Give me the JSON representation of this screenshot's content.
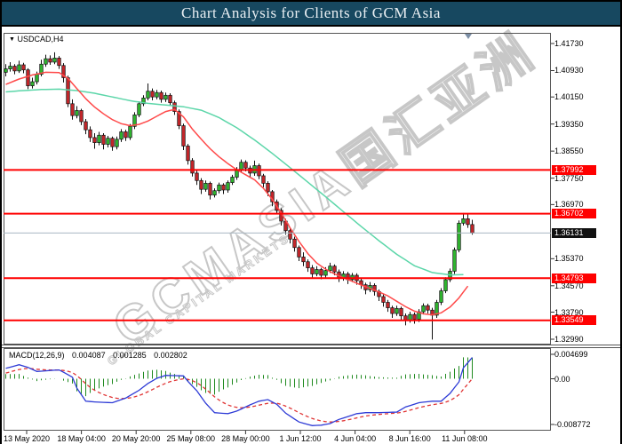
{
  "title_bar": {
    "text": "Chart Analysis for Clients of GCM Asia"
  },
  "symbol_label": {
    "arrow": "▼",
    "text": "USDCAD,H4"
  },
  "watermark": {
    "line1": "GCMASIA国汇亚洲",
    "line2": "GLOBAL CAPITAL MARKETS"
  },
  "colors": {
    "title_bg": "#174860",
    "title_fg": "#e9eff3",
    "bull": "#2FB52F",
    "bear": "#C3262A",
    "candle_outline": "#111111",
    "ma_fast": "#FF4A4A",
    "ma_slow": "#5CD6A9",
    "hline_red": "#FF0000",
    "current_line": "#A7B6C2",
    "macd_line": "#2E3BD6",
    "signal_line": "#E03434",
    "histogram": "#1F8A1F",
    "badge_red": "#FF0000",
    "badge_black": "#111111",
    "frame": "#555555",
    "marker": "#7C8FA6"
  },
  "chart_data": [
    {
      "type": "candlestick",
      "symbol": "USDCAD",
      "timeframe": "H4",
      "ylim": [
        1.3299,
        1.4173
      ],
      "y_ticks": [
        "1.41730",
        "1.40930",
        "1.40150",
        "1.39350",
        "1.38550",
        "1.37750",
        "1.36970",
        "1.35370",
        "1.34570",
        "1.33790",
        "1.32990"
      ],
      "x_labels": [
        "13 May 2020",
        "18 May 04:00",
        "20 May 20:00",
        "25 May 08:00",
        "28 May 00:00",
        "1 Jun 12:00",
        "4 Jun 04:00",
        "8 Jun 16:00",
        "11 Jun 08:00"
      ],
      "hlines": [
        {
          "price": "1.37992",
          "role": "resistance"
        },
        {
          "price": "1.36702",
          "role": "resistance"
        },
        {
          "price": "1.34793",
          "role": "support"
        },
        {
          "price": "1.33549",
          "role": "support"
        }
      ],
      "current_price": {
        "price": "1.36131"
      },
      "ma_fast_red": {
        "points": [
          [
            0,
            1.4052
          ],
          [
            3,
            1.4068
          ],
          [
            6,
            1.408
          ],
          [
            9,
            1.4088
          ],
          [
            12,
            1.4087
          ],
          [
            14,
            1.407
          ],
          [
            16,
            1.404
          ],
          [
            18,
            1.401
          ],
          [
            20,
            1.3985
          ],
          [
            22,
            1.3965
          ],
          [
            24,
            1.3948
          ],
          [
            26,
            1.3936
          ],
          [
            28,
            1.393
          ],
          [
            30,
            1.3934
          ],
          [
            32,
            1.3944
          ],
          [
            34,
            1.3958
          ],
          [
            36,
            1.3972
          ],
          [
            38,
            1.3978
          ],
          [
            40,
            1.3956
          ],
          [
            42,
            1.392
          ],
          [
            44,
            1.389
          ],
          [
            46,
            1.3862
          ],
          [
            48,
            1.3838
          ],
          [
            50,
            1.3818
          ],
          [
            52,
            1.38
          ],
          [
            54,
            1.3785
          ],
          [
            56,
            1.377
          ],
          [
            58,
            1.3745
          ],
          [
            60,
            1.3712
          ],
          [
            62,
            1.3672
          ],
          [
            64,
            1.3628
          ],
          [
            66,
            1.3588
          ],
          [
            68,
            1.3552
          ],
          [
            70,
            1.3524
          ],
          [
            72,
            1.3506
          ],
          [
            74,
            1.3492
          ],
          [
            76,
            1.3481
          ],
          [
            78,
            1.347
          ],
          [
            80,
            1.3459
          ],
          [
            82,
            1.3449
          ],
          [
            84,
            1.3439
          ],
          [
            86,
            1.3427
          ],
          [
            88,
            1.3411
          ],
          [
            90,
            1.3395
          ],
          [
            92,
            1.3382
          ],
          [
            94,
            1.3374
          ],
          [
            96,
            1.3371
          ],
          [
            98,
            1.3377
          ],
          [
            100,
            1.3394
          ],
          [
            102,
            1.3421
          ],
          [
            104,
            1.3456
          ]
        ]
      },
      "ma_slow_green": {
        "points": [
          [
            0,
            1.403
          ],
          [
            4,
            1.4034
          ],
          [
            8,
            1.4037
          ],
          [
            12,
            1.4038
          ],
          [
            16,
            1.4034
          ],
          [
            20,
            1.4026
          ],
          [
            24,
            1.4015
          ],
          [
            28,
            1.4004
          ],
          [
            32,
            1.3996
          ],
          [
            36,
            1.3991
          ],
          [
            40,
            1.3986
          ],
          [
            44,
            1.3976
          ],
          [
            48,
            1.3954
          ],
          [
            52,
            1.3924
          ],
          [
            56,
            1.3888
          ],
          [
            60,
            1.3848
          ],
          [
            64,
            1.3806
          ],
          [
            68,
            1.3763
          ],
          [
            72,
            1.372
          ],
          [
            76,
            1.3676
          ],
          [
            80,
            1.3632
          ],
          [
            84,
            1.359
          ],
          [
            88,
            1.355
          ],
          [
            92,
            1.3516
          ],
          [
            96,
            1.3496
          ],
          [
            100,
            1.3489
          ],
          [
            103,
            1.349
          ]
        ]
      },
      "candles": [
        [
          1.4088,
          1.4112,
          1.4076,
          1.4098
        ],
        [
          1.4098,
          1.4118,
          1.409,
          1.4106
        ],
        [
          1.4106,
          1.4112,
          1.4082,
          1.4092
        ],
        [
          1.4092,
          1.4122,
          1.4086,
          1.411
        ],
        [
          1.411,
          1.4116,
          1.4085,
          1.4095
        ],
        [
          1.4095,
          1.41,
          1.4038,
          1.4048
        ],
        [
          1.4048,
          1.4072,
          1.404,
          1.406
        ],
        [
          1.406,
          1.409,
          1.4052,
          1.4082
        ],
        [
          1.4082,
          1.4125,
          1.4076,
          1.4112
        ],
        [
          1.4112,
          1.414,
          1.4104,
          1.4128
        ],
        [
          1.4128,
          1.4138,
          1.411,
          1.4118
        ],
        [
          1.4118,
          1.4147,
          1.4112,
          1.413
        ],
        [
          1.413,
          1.4136,
          1.4098,
          1.4108
        ],
        [
          1.4108,
          1.4115,
          1.4058,
          1.4072
        ],
        [
          1.4072,
          1.4078,
          1.3985,
          1.3995
        ],
        [
          1.3995,
          1.4008,
          1.3948,
          1.396
        ],
        [
          1.396,
          1.3988,
          1.3952,
          1.3975
        ],
        [
          1.3975,
          1.398,
          1.3932,
          1.3942
        ],
        [
          1.3942,
          1.395,
          1.3905,
          1.3918
        ],
        [
          1.3918,
          1.3928,
          1.3882,
          1.3895
        ],
        [
          1.3895,
          1.3908,
          1.3862,
          1.388
        ],
        [
          1.388,
          1.3912,
          1.3872,
          1.3902
        ],
        [
          1.3902,
          1.3908,
          1.386,
          1.3875
        ],
        [
          1.3875,
          1.39,
          1.3866,
          1.3893
        ],
        [
          1.3893,
          1.3898,
          1.3856,
          1.3868
        ],
        [
          1.3868,
          1.3898,
          1.386,
          1.389
        ],
        [
          1.389,
          1.392,
          1.3882,
          1.3912
        ],
        [
          1.3912,
          1.3918,
          1.3885,
          1.3895
        ],
        [
          1.3895,
          1.3935,
          1.3888,
          1.3928
        ],
        [
          1.3928,
          1.397,
          1.392,
          1.3962
        ],
        [
          1.3962,
          1.4002,
          1.3955,
          1.3995
        ],
        [
          1.3995,
          1.402,
          1.3988,
          1.4012
        ],
        [
          1.4012,
          1.4055,
          1.4005,
          1.4032
        ],
        [
          1.4032,
          1.404,
          1.4005,
          1.4015
        ],
        [
          1.4015,
          1.4036,
          1.4008,
          1.4028
        ],
        [
          1.4028,
          1.4034,
          1.3998,
          1.4008
        ],
        [
          1.4008,
          1.4028,
          1.4,
          1.402
        ],
        [
          1.402,
          1.4026,
          1.3988,
          1.3998
        ],
        [
          1.3998,
          1.4004,
          1.3962,
          1.3972
        ],
        [
          1.3972,
          1.3978,
          1.392,
          1.393
        ],
        [
          1.393,
          1.3936,
          1.3858,
          1.387
        ],
        [
          1.387,
          1.3876,
          1.3815,
          1.3827
        ],
        [
          1.3827,
          1.3834,
          1.378,
          1.379
        ],
        [
          1.379,
          1.38,
          1.3755,
          1.3768
        ],
        [
          1.3768,
          1.3775,
          1.3728,
          1.3742
        ],
        [
          1.3742,
          1.3768,
          1.3735,
          1.376
        ],
        [
          1.376,
          1.3765,
          1.3712,
          1.3725
        ],
        [
          1.3725,
          1.3745,
          1.3718,
          1.3738
        ],
        [
          1.3738,
          1.3762,
          1.373,
          1.3755
        ],
        [
          1.3755,
          1.376,
          1.3728,
          1.374
        ],
        [
          1.374,
          1.3768,
          1.3732,
          1.3762
        ],
        [
          1.3762,
          1.3785,
          1.3755,
          1.3778
        ],
        [
          1.3778,
          1.3808,
          1.377,
          1.38
        ],
        [
          1.38,
          1.383,
          1.3792,
          1.3822
        ],
        [
          1.3822,
          1.3828,
          1.3795,
          1.3805
        ],
        [
          1.3805,
          1.3812,
          1.3778,
          1.379
        ],
        [
          1.379,
          1.3827,
          1.3782,
          1.3812
        ],
        [
          1.3812,
          1.3818,
          1.3772,
          1.3782
        ],
        [
          1.3782,
          1.3788,
          1.3748,
          1.376
        ],
        [
          1.376,
          1.3766,
          1.3722,
          1.3735
        ],
        [
          1.3735,
          1.374,
          1.3692,
          1.3705
        ],
        [
          1.3705,
          1.3712,
          1.3668,
          1.368
        ],
        [
          1.368,
          1.3686,
          1.3635,
          1.3648
        ],
        [
          1.3648,
          1.3655,
          1.3608,
          1.362
        ],
        [
          1.362,
          1.3626,
          1.3582,
          1.3595
        ],
        [
          1.3595,
          1.3602,
          1.3558,
          1.357
        ],
        [
          1.357,
          1.3576,
          1.353,
          1.3542
        ],
        [
          1.3542,
          1.3556,
          1.3515,
          1.3528
        ],
        [
          1.3528,
          1.3535,
          1.3498,
          1.351
        ],
        [
          1.351,
          1.3518,
          1.348,
          1.3492
        ],
        [
          1.3492,
          1.3515,
          1.3485,
          1.3505
        ],
        [
          1.3505,
          1.351,
          1.3476,
          1.3488
        ],
        [
          1.3488,
          1.3512,
          1.348,
          1.3502
        ],
        [
          1.3502,
          1.3525,
          1.3495,
          1.3515
        ],
        [
          1.3515,
          1.352,
          1.3488,
          1.3498
        ],
        [
          1.3498,
          1.3505,
          1.3468,
          1.348
        ],
        [
          1.348,
          1.35,
          1.3472,
          1.3492
        ],
        [
          1.3492,
          1.3498,
          1.3462,
          1.3475
        ],
        [
          1.3475,
          1.3495,
          1.3468,
          1.3488
        ],
        [
          1.3488,
          1.3494,
          1.346,
          1.3472
        ],
        [
          1.3472,
          1.3478,
          1.3448,
          1.346
        ],
        [
          1.346,
          1.3466,
          1.3432,
          1.3445
        ],
        [
          1.3445,
          1.3468,
          1.3438,
          1.3458
        ],
        [
          1.3458,
          1.3464,
          1.3428,
          1.344
        ],
        [
          1.344,
          1.3446,
          1.3412,
          1.3425
        ],
        [
          1.3425,
          1.3432,
          1.3395,
          1.3408
        ],
        [
          1.3408,
          1.3415,
          1.338,
          1.3392
        ],
        [
          1.3392,
          1.3398,
          1.3362,
          1.3375
        ],
        [
          1.3375,
          1.3398,
          1.3368,
          1.339
        ],
        [
          1.339,
          1.3395,
          1.3355,
          1.3368
        ],
        [
          1.3368,
          1.3375,
          1.334,
          1.3355
        ],
        [
          1.3355,
          1.338,
          1.3348,
          1.3372
        ],
        [
          1.3372,
          1.3378,
          1.3345,
          1.3358
        ],
        [
          1.3358,
          1.3388,
          1.335,
          1.338
        ],
        [
          1.338,
          1.3405,
          1.3372,
          1.3398
        ],
        [
          1.3398,
          1.3404,
          1.3375,
          1.3385
        ],
        [
          1.3385,
          1.3392,
          1.3298,
          1.337
        ],
        [
          1.337,
          1.3415,
          1.3362,
          1.3408
        ],
        [
          1.3408,
          1.345,
          1.34,
          1.3442
        ],
        [
          1.3442,
          1.3482,
          1.3435,
          1.3475
        ],
        [
          1.3475,
          1.3508,
          1.3468,
          1.35
        ],
        [
          1.35,
          1.357,
          1.3492,
          1.3563
        ],
        [
          1.3563,
          1.365,
          1.3556,
          1.3642
        ],
        [
          1.3642,
          1.3672,
          1.3635,
          1.3655
        ],
        [
          1.3655,
          1.3668,
          1.3628,
          1.3638
        ],
        [
          1.3638,
          1.3652,
          1.3608,
          1.36131
        ]
      ]
    },
    {
      "type": "macd",
      "label": "MACD(12,26,9)",
      "values_text": [
        "0.004087",
        "0.001285",
        "0.002802"
      ],
      "y_ticks": [
        "0.004699",
        "0.00",
        "-0.008772"
      ],
      "ylim": [
        -0.008772,
        0.004699
      ],
      "macd_points": [
        [
          0,
          0.002
        ],
        [
          3,
          0.0027
        ],
        [
          5,
          0.0022
        ],
        [
          7,
          0.0014
        ],
        [
          10,
          0.0016
        ],
        [
          12,
          0.0017
        ],
        [
          14,
          0.0008
        ],
        [
          15,
          0.0003
        ],
        [
          16,
          -0.0018
        ],
        [
          18,
          -0.0043
        ],
        [
          21,
          -0.0045
        ],
        [
          24,
          -0.0046
        ],
        [
          27,
          -0.0037
        ],
        [
          30,
          -0.0022
        ],
        [
          32,
          -0.0009
        ],
        [
          34,
          0.0001
        ],
        [
          36,
          0.00065
        ],
        [
          38,
          0.0006
        ],
        [
          40,
          0.00055
        ],
        [
          41,
          -0.0005
        ],
        [
          43,
          -0.0023
        ],
        [
          45,
          -0.0047
        ],
        [
          47,
          -0.0065
        ],
        [
          50,
          -0.0067
        ],
        [
          52,
          -0.0062
        ],
        [
          55,
          -0.005
        ],
        [
          57,
          -0.0043
        ],
        [
          59,
          -0.004
        ],
        [
          61,
          -0.0049
        ],
        [
          63,
          -0.0066
        ],
        [
          66,
          -0.0083
        ],
        [
          69,
          -0.009
        ],
        [
          71,
          -0.0089
        ],
        [
          73,
          -0.0086
        ],
        [
          75,
          -0.0078
        ],
        [
          79,
          -0.0067
        ],
        [
          81,
          -0.0065
        ],
        [
          84,
          -0.0065
        ],
        [
          88,
          -0.0064
        ],
        [
          90,
          -0.0054
        ],
        [
          93,
          -0.0046
        ],
        [
          96,
          -0.0043
        ],
        [
          98,
          -0.0043
        ],
        [
          100,
          -0.0028
        ],
        [
          102,
          -0.0006
        ],
        [
          103,
          0.0021
        ],
        [
          104,
          0.0031
        ],
        [
          105,
          0.004087
        ]
      ],
      "signal_rule": "ema9"
    }
  ]
}
